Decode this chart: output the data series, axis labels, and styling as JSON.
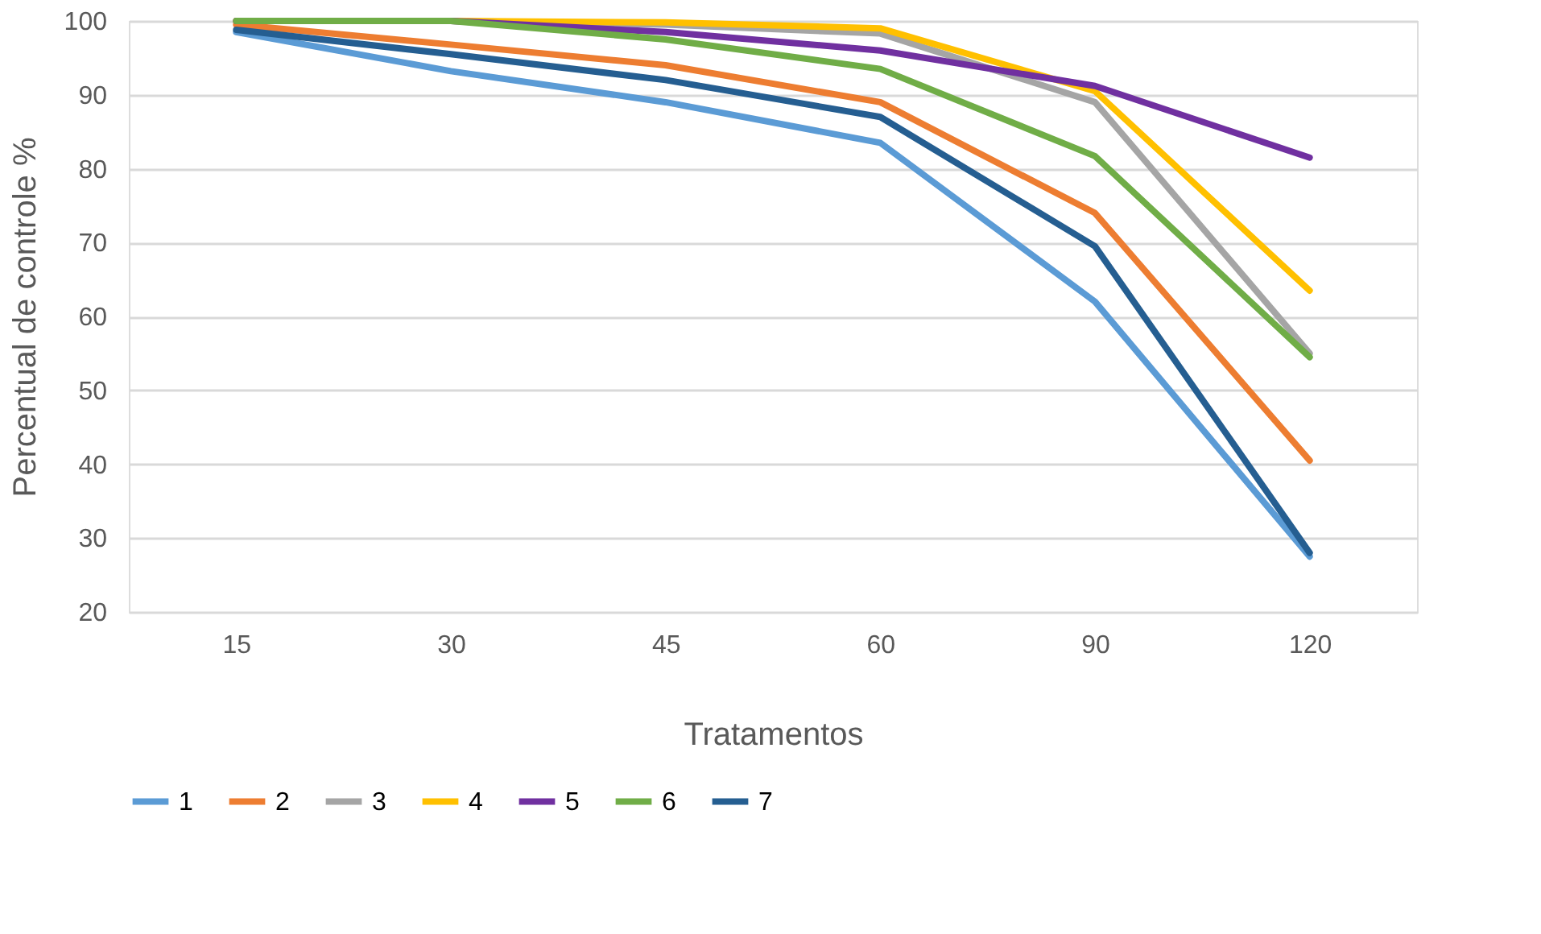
{
  "chart_data": {
    "type": "line",
    "xlabel": "Tratamentos",
    "ylabel": "Percentual de controle %",
    "categories": [
      "15",
      "30",
      "45",
      "60",
      "90",
      "120"
    ],
    "ylim": [
      20,
      100
    ],
    "yticks": [
      20,
      30,
      40,
      50,
      60,
      70,
      80,
      90,
      100
    ],
    "grid": "y",
    "legend": "bottom",
    "marker": "none",
    "line_style": "solid",
    "series": [
      {
        "name": "1",
        "color": "#5b9bd5",
        "values": [
          98.5,
          93.2,
          89,
          83.5,
          62,
          27.5
        ]
      },
      {
        "name": "2",
        "color": "#ed7d31",
        "values": [
          99.5,
          96.8,
          94,
          89,
          74,
          40.5
        ]
      },
      {
        "name": "3",
        "color": "#a5a5a5",
        "values": [
          null,
          100,
          99.5,
          98.3,
          89,
          55
        ]
      },
      {
        "name": "4",
        "color": "#ffc000",
        "values": [
          100,
          100,
          99.8,
          99,
          90.5,
          63.5
        ]
      },
      {
        "name": "5",
        "color": "#7030a0",
        "values": [
          100,
          100,
          98.5,
          96,
          91.2,
          81.5
        ]
      },
      {
        "name": "6",
        "color": "#70ad47",
        "values": [
          100,
          100,
          97.5,
          93.5,
          81.7,
          54.5
        ]
      },
      {
        "name": "7",
        "color": "#255e91",
        "values": [
          98.8,
          95.5,
          92,
          87,
          69.5,
          28
        ]
      }
    ]
  }
}
